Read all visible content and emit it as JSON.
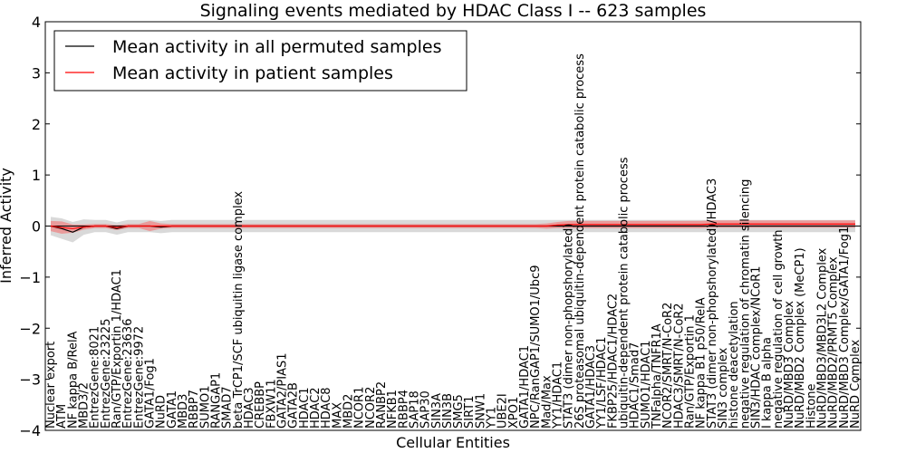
{
  "chart_data": {
    "type": "line",
    "title": "Signaling events mediated by HDAC Class I -- 623 samples",
    "xlabel": "Cellular Entities",
    "ylabel": "Inferred Activity",
    "ylim": [
      -4,
      4
    ],
    "yticks": [
      -4,
      -3,
      -2,
      -1,
      0,
      1,
      2,
      3,
      4
    ],
    "ytick_labels": [
      "−4",
      "−3",
      "−2",
      "−1",
      "0",
      "1",
      "2",
      "3",
      "4"
    ],
    "legend": {
      "location": "top-left",
      "entries": [
        {
          "label": "Mean activity in all permuted samples",
          "color": "#000000"
        },
        {
          "label": "Mean activity in patient samples",
          "color": "#ff0000"
        }
      ]
    },
    "colors": {
      "permuted": "#000000",
      "patient": "#ff0000",
      "permuted_band": "#cccccc",
      "patient_band": "#f08080"
    },
    "categories": [
      "Nuclear export",
      "ATM",
      "NF kappa B/RelA",
      "MBD3/2",
      "EntrezGene:8021",
      "EntrezGene:23225",
      "Ran/GTP/Exportin 1/HDAC1",
      "EntrezGene:23636",
      "EntrezGene:9972",
      "GATA1/Fog1",
      "NuRD",
      "GATA1",
      "MBD3",
      "RBBP7",
      "SUMO1",
      "RANGAP1",
      "SMAD7",
      "beta TrCP1/SCF ubiquitin ligase complex",
      "HDAC3",
      "CREBBP",
      "FBXW11",
      "GATA2/PIAS1",
      "GATA2B",
      "HDAC1",
      "HDAC2",
      "HDAC8",
      "MAX",
      "MBD2",
      "NCOR1",
      "NCOR2",
      "RANBP2",
      "NFKB1",
      "RBBP4",
      "SAP18",
      "SAP30",
      "SIN3A",
      "SIN3B",
      "SMG5",
      "SIRT1",
      "SNW1",
      "YY1",
      "UBE2I",
      "XPO1",
      "GATA1/HDAC1",
      "NPC/RanGAP1/SUMO1/Ubc9",
      "Mad/Max",
      "YY1/HDAC1",
      "STAT3 (dimer non-phopshorylated)",
      "26S proteasomal ubiquitin-dependent protein catabolic process",
      "GATA1/HDAC3",
      "YY1/LSF/HDAC1",
      "FKBP25/HDAC1/HDAC2",
      "ubiquitin-dependent protein catabolic process",
      "HDAC1/Smad7",
      "SUMO1/HDAC1",
      "TNFalpha/TNFR1A",
      "NCOR2/SMRT/N-CoR2",
      "HDAC3/SMRT/N-CoR2",
      "Ran/GTP/Exportin 1",
      "NF kappa B1 p50/RelA",
      "STAT3 (dimer non-phopshorylated)/HDAC3",
      "SIN3 complex",
      "histone deacetylation",
      "negative regulation of chromatin silencing",
      "SIN3/HDAC complex/NCoR1",
      "I kappa B alpha",
      "negative regulation of cell growth",
      "NuRD/MBD3 Complex",
      "NuRD/MBD2 Complex (MeCP1)",
      "Histone",
      "NuRD/MBD3/MBD3L2 Complex",
      "NuRD/MBD2/PRMT5 Complex",
      "NuRD/MBD3 Complex/GATA1/Fog1",
      "NuRD Complex"
    ],
    "series": [
      {
        "name": "Mean activity in all permuted samples",
        "values": [
          0,
          -0.05,
          -0.12,
          -0.02,
          0,
          0,
          -0.05,
          0,
          0,
          0,
          -0.02,
          0,
          0,
          0,
          0,
          0,
          0,
          0,
          0,
          0,
          0,
          0,
          0,
          0,
          0,
          0,
          0,
          0,
          0,
          0,
          0,
          0,
          0,
          0,
          0,
          0,
          0,
          0,
          0,
          0,
          0,
          0,
          0,
          0,
          0,
          0,
          0,
          0,
          0,
          0,
          0,
          0,
          0,
          0,
          0,
          0,
          0,
          0,
          0,
          0,
          0,
          0,
          0,
          0,
          0,
          0,
          0,
          0,
          0,
          0,
          0,
          0,
          0,
          0
        ],
        "band": [
          0.18,
          0.2,
          0.2,
          0.15,
          0.12,
          0.12,
          0.12,
          0.12,
          0.12,
          0.12,
          0.12,
          0.12,
          0.12,
          0.12,
          0.12,
          0.12,
          0.12,
          0.12,
          0.12,
          0.12,
          0.12,
          0.12,
          0.12,
          0.12,
          0.12,
          0.12,
          0.12,
          0.12,
          0.12,
          0.12,
          0.12,
          0.12,
          0.12,
          0.12,
          0.12,
          0.12,
          0.12,
          0.12,
          0.12,
          0.12,
          0.12,
          0.12,
          0.12,
          0.12,
          0.12,
          0.12,
          0.12,
          0.12,
          0.12,
          0.12,
          0.12,
          0.12,
          0.12,
          0.12,
          0.12,
          0.12,
          0.12,
          0.12,
          0.12,
          0.12,
          0.12,
          0.12,
          0.12,
          0.12,
          0.12,
          0.12,
          0.12,
          0.12,
          0.12,
          0.12,
          0.12,
          0.12,
          0.12,
          0.12
        ]
      },
      {
        "name": "Mean activity in patient samples",
        "values": [
          0,
          -0.03,
          -0.05,
          -0.02,
          0,
          0,
          -0.03,
          0,
          0,
          0,
          0,
          0,
          0,
          0,
          0,
          0,
          0,
          0,
          0,
          0,
          0,
          0,
          0,
          0,
          0,
          0,
          0,
          0,
          0,
          0,
          0,
          0,
          0,
          0,
          0,
          0,
          0,
          0,
          0,
          0,
          0,
          0,
          0,
          0,
          0,
          0,
          0.02,
          0.03,
          0.03,
          0.03,
          0.03,
          0.03,
          0.03,
          0.03,
          0.03,
          0.03,
          0.03,
          0.03,
          0.03,
          0.03,
          0.04,
          0.04,
          0.04,
          0.04,
          0.04,
          0.04,
          0.04,
          0.04,
          0.04,
          0.04,
          0.04,
          0.04,
          0.04,
          0.04
        ],
        "band": [
          0.1,
          0.12,
          0.08,
          0.05,
          0.04,
          0.04,
          0.05,
          0.04,
          0.04,
          0.1,
          0.05,
          0.04,
          0.04,
          0.04,
          0.04,
          0.04,
          0.04,
          0.04,
          0.04,
          0.04,
          0.04,
          0.04,
          0.04,
          0.04,
          0.04,
          0.04,
          0.04,
          0.04,
          0.04,
          0.04,
          0.04,
          0.04,
          0.04,
          0.04,
          0.04,
          0.04,
          0.04,
          0.04,
          0.04,
          0.04,
          0.04,
          0.04,
          0.04,
          0.04,
          0.04,
          0.05,
          0.06,
          0.07,
          0.07,
          0.07,
          0.07,
          0.07,
          0.07,
          0.07,
          0.07,
          0.07,
          0.07,
          0.07,
          0.07,
          0.07,
          0.07,
          0.07,
          0.07,
          0.07,
          0.07,
          0.07,
          0.07,
          0.07,
          0.07,
          0.07,
          0.07,
          0.07,
          0.07,
          0.07
        ]
      }
    ]
  }
}
